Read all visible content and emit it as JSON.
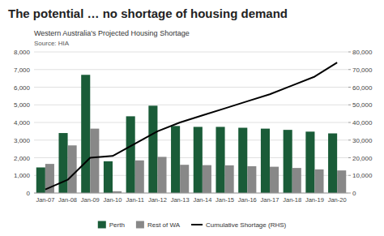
{
  "chart_data": {
    "type": "bar",
    "title": "The potential … no shortage of housing demand",
    "subtitle": "Western Australia's Projected Housing Shortage",
    "source": "Source: HIA",
    "categories": [
      "Jan-07",
      "Jan-08",
      "Jan-09",
      "Jan-10",
      "Jan-11",
      "Jan-12",
      "Jan-13",
      "Jan-14",
      "Jan-15",
      "Jan-16",
      "Jan-17",
      "Jan-18",
      "Jan-19",
      "Jan-20"
    ],
    "series": [
      {
        "name": "Perth",
        "color": "#1a5c38",
        "values": [
          1450,
          3400,
          6700,
          1800,
          4350,
          4950,
          3800,
          3750,
          3750,
          3700,
          3650,
          3580,
          3480,
          3380
        ]
      },
      {
        "name": "Rest of WA",
        "color": "#888888",
        "values": [
          1650,
          2700,
          3650,
          100,
          1850,
          2050,
          1600,
          1580,
          1570,
          1520,
          1490,
          1420,
          1340,
          1280
        ]
      },
      {
        "name": "Cumulative Shortage (RHS)",
        "type": "line",
        "axis": "y2",
        "color": "#000000",
        "values": [
          2000,
          7500,
          20000,
          21000,
          28000,
          35000,
          40000,
          44000,
          48000,
          52000,
          56000,
          61000,
          66000,
          74000
        ]
      }
    ],
    "ylim": [
      0,
      8000
    ],
    "yticks": [
      0,
      {
        "value": 1000,
        "label": "1,000"
      },
      {
        "value": 2000,
        "label": "2,000"
      },
      {
        "value": 3000,
        "label": "3,000"
      },
      {
        "value": 4000,
        "label": "4,000"
      },
      {
        "value": 5000,
        "label": "5,000"
      },
      {
        "value": 6000,
        "label": "6,000"
      },
      {
        "value": 7000,
        "label": "7,000"
      },
      {
        "value": 8000,
        "label": "8,000"
      }
    ],
    "y2lim": [
      0,
      80000
    ],
    "y2ticks": [
      0,
      {
        "value": 10000,
        "label": "10,000"
      },
      {
        "value": 20000,
        "label": "20,000"
      },
      {
        "value": 30000,
        "label": "30,000"
      },
      {
        "value": 40000,
        "label": "40,000"
      },
      {
        "value": 50000,
        "label": "50,000"
      },
      {
        "value": 60000,
        "label": "60,000"
      },
      {
        "value": 70000,
        "label": "70,000"
      },
      {
        "value": 80000,
        "label": "80,000"
      }
    ],
    "grid": true,
    "legend": "bottom"
  }
}
